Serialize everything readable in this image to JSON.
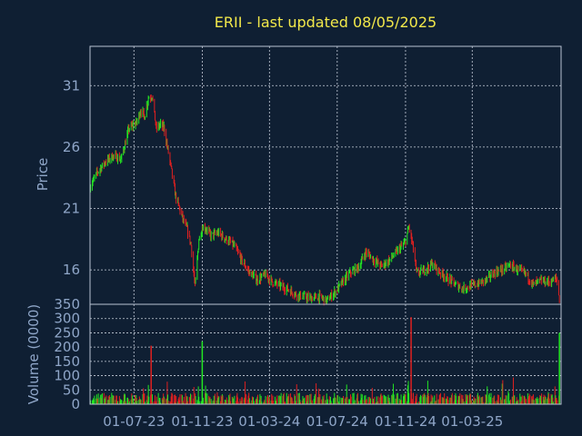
{
  "title": "ERII - last updated 08/05/2025",
  "colors": {
    "background": "#0f1f33",
    "title": "#f2e84a",
    "axis_text": "#8fa6c8",
    "frame": "#b8c3d3",
    "grid": "#c8d0dc",
    "up": "#22e622",
    "down": "#e02020"
  },
  "chart_data": [
    {
      "type": "line",
      "title": "ERII - last updated 08/05/2025",
      "ylabel": "Price",
      "ylim": [
        13.2,
        34.2
      ],
      "yticks": [
        16,
        21,
        26,
        31
      ],
      "grid": true,
      "series": [
        {
          "x": [
            "2023-04-13",
            "2023-04-27",
            "2023-05-11",
            "2023-05-25",
            "2023-06-08",
            "2023-06-22",
            "2023-07-06",
            "2023-07-13",
            "2023-07-20",
            "2023-07-27",
            "2023-08-03",
            "2023-08-10",
            "2023-08-17",
            "2023-08-24",
            "2023-08-31",
            "2023-09-07",
            "2023-09-14",
            "2023-09-21",
            "2023-09-28",
            "2023-10-05",
            "2023-10-12",
            "2023-10-19",
            "2023-10-26",
            "2023-11-02",
            "2023-11-09",
            "2023-11-16",
            "2023-11-30",
            "2023-12-14",
            "2023-12-28",
            "2024-01-11",
            "2024-01-25",
            "2024-02-08",
            "2024-02-22",
            "2024-03-07",
            "2024-03-21",
            "2024-04-04",
            "2024-04-18",
            "2024-05-02",
            "2024-05-16",
            "2024-05-30",
            "2024-06-13",
            "2024-06-27",
            "2024-07-11",
            "2024-07-25",
            "2024-08-08",
            "2024-08-22",
            "2024-09-05",
            "2024-09-19",
            "2024-10-03",
            "2024-10-17",
            "2024-10-31",
            "2024-11-07",
            "2024-11-14",
            "2024-11-21",
            "2024-12-05",
            "2024-12-19",
            "2025-01-02",
            "2025-01-16",
            "2025-01-30",
            "2025-02-13",
            "2025-02-27",
            "2025-03-13",
            "2025-03-27",
            "2025-04-10",
            "2025-04-24",
            "2025-05-08",
            "2025-05-22",
            "2025-06-05",
            "2025-06-19",
            "2025-07-03",
            "2025-07-17",
            "2025-07-31",
            "2025-08-05"
          ],
          "close": [
            22.8,
            24.0,
            24.8,
            25.3,
            25.0,
            27.5,
            28.0,
            29.0,
            28.5,
            30.0,
            30.2,
            27.5,
            27.8,
            27.6,
            25.8,
            24.0,
            22.0,
            21.0,
            20.0,
            19.3,
            18.0,
            14.6,
            18.5,
            19.5,
            19.3,
            18.8,
            19.0,
            18.5,
            18.0,
            16.8,
            15.8,
            15.2,
            15.6,
            15.0,
            14.7,
            14.4,
            14.0,
            13.8,
            13.7,
            13.8,
            13.5,
            14.2,
            15.0,
            15.8,
            16.2,
            17.5,
            16.8,
            16.3,
            16.8,
            17.5,
            18.2,
            19.5,
            18.0,
            15.7,
            16.0,
            16.5,
            15.8,
            15.3,
            14.8,
            14.5,
            14.7,
            14.9,
            15.2,
            15.8,
            16.0,
            16.4,
            16.0,
            15.7,
            14.8,
            15.1,
            15.0,
            15.3,
            13.6
          ]
        }
      ]
    },
    {
      "type": "bar",
      "ylabel": "Volume (0000)",
      "ylim": [
        0,
        350
      ],
      "yticks": [
        0,
        50,
        100,
        150,
        200,
        250,
        300,
        350
      ],
      "grid": true,
      "xticks": [
        "01-07-23",
        "01-11-23",
        "01-03-24",
        "01-07-24",
        "01-11-24",
        "01-03-25"
      ],
      "spikes": [
        {
          "x": "2023-08-01",
          "value": 205
        },
        {
          "x": "2023-11-01",
          "value": 220
        },
        {
          "x": "2024-11-11",
          "value": 305
        },
        {
          "x": "2025-08-05",
          "value": 250
        }
      ]
    }
  ]
}
